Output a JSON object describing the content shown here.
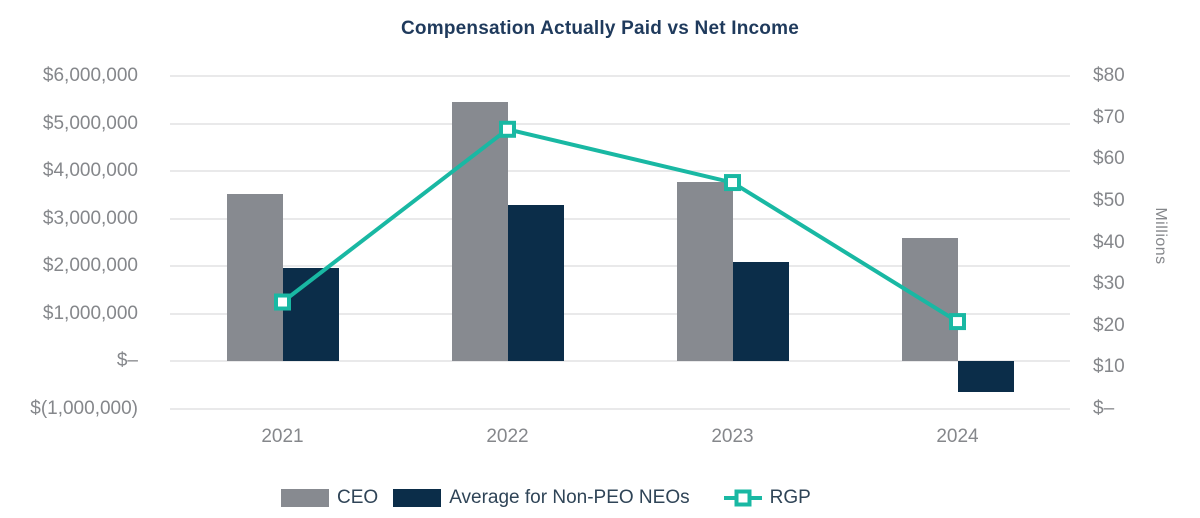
{
  "colors": {
    "background": "#FFFFFF",
    "title_text": "#1F3A5C",
    "axis_text": "#85878B",
    "legend_text": "#2F4457",
    "grid_line": "#E9E9EA",
    "ceo_bar": "#878A90",
    "neo_bar": "#0B2D49",
    "rgp_line": "#19B8A3",
    "rgp_marker_fill": "#FFFFFF"
  },
  "chart_data": {
    "type": "combo-grouped-bar-and-line",
    "title": "Compensation Actually Paid vs Net Income",
    "categories": [
      "2021",
      "2022",
      "2023",
      "2024"
    ],
    "series": [
      {
        "name": "CEO",
        "type": "bar",
        "axis": "left",
        "color_key": "ceo_bar",
        "values": [
          3530000,
          5460000,
          3780000,
          2600000
        ]
      },
      {
        "name": "Average for Non-PEO NEOs",
        "type": "bar",
        "axis": "left",
        "color_key": "neo_bar",
        "values": [
          1970000,
          3280000,
          2090000,
          -640000
        ]
      },
      {
        "name": "RGP",
        "type": "line",
        "axis": "right",
        "color_key": "rgp_line",
        "marker": "square-white-fill",
        "values_millions": [
          25.7,
          67.2,
          54.4,
          21
        ]
      }
    ],
    "left_axis": {
      "min": -1000000,
      "max": 6000000,
      "tick_step": 1000000,
      "tick_labels": [
        "$6,000,000",
        "$5,000,000",
        "$4,000,000",
        "$3,000,000",
        "$2,000,000",
        "$1,000,000",
        "$–",
        "$(1,000,000)"
      ]
    },
    "right_axis": {
      "min": 0,
      "max": 80,
      "tick_step": 10,
      "unit_label": "Millions",
      "tick_labels": [
        "$80",
        "$70",
        "$60",
        "$50",
        "$40",
        "$30",
        "$20",
        "$10",
        "$–"
      ]
    },
    "grid": "horizontal-only",
    "legend_position": "bottom"
  },
  "legend": {
    "items": [
      {
        "label": "CEO",
        "swatch": "gray-bar"
      },
      {
        "label": "Average for Non-PEO NEOs",
        "swatch": "navy-bar"
      },
      {
        "label": "RGP",
        "swatch": "teal-line-square-marker"
      }
    ]
  }
}
